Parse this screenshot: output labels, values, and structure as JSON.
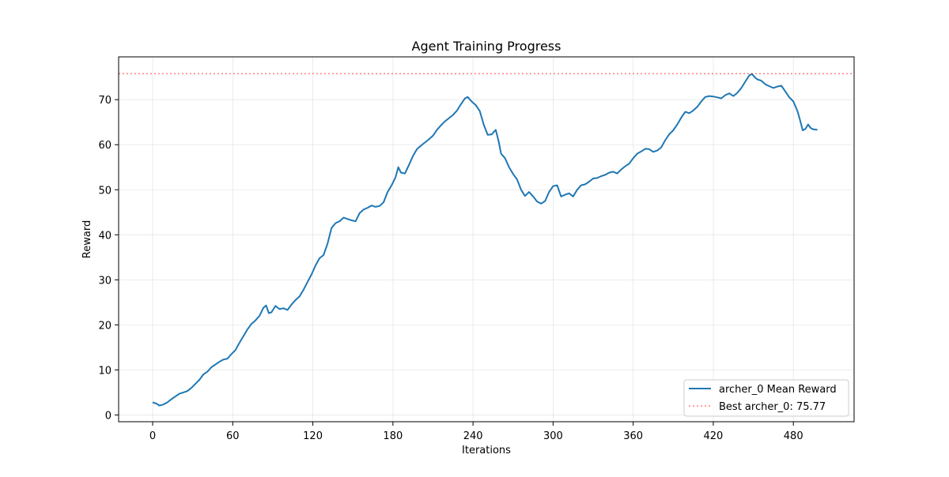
{
  "chart_data": {
    "type": "line",
    "title": "Agent Training Progress",
    "xlabel": "Iterations",
    "ylabel": "Reward",
    "xlim": [
      -25.5,
      525.5
    ],
    "ylim": [
      -1.5,
      79.5
    ],
    "xticks": [
      0,
      60,
      120,
      180,
      240,
      300,
      360,
      420,
      480
    ],
    "yticks": [
      0,
      10,
      20,
      30,
      40,
      50,
      60,
      70
    ],
    "grid": true,
    "legend_position": "lower-right",
    "series": [
      {
        "name": "archer_0 Mean Reward",
        "color": "#1f77b4",
        "style": "solid",
        "points": [
          [
            0,
            2.8
          ],
          [
            3,
            2.5
          ],
          [
            5,
            2.1
          ],
          [
            8,
            2.3
          ],
          [
            11,
            2.8
          ],
          [
            14,
            3.5
          ],
          [
            17,
            4.1
          ],
          [
            20,
            4.7
          ],
          [
            23,
            5.0
          ],
          [
            26,
            5.3
          ],
          [
            29,
            6.0
          ],
          [
            32,
            6.9
          ],
          [
            35,
            7.8
          ],
          [
            38,
            9.0
          ],
          [
            41,
            9.6
          ],
          [
            44,
            10.6
          ],
          [
            47,
            11.2
          ],
          [
            50,
            11.8
          ],
          [
            53,
            12.3
          ],
          [
            56,
            12.5
          ],
          [
            59,
            13.5
          ],
          [
            62,
            14.4
          ],
          [
            65,
            16.0
          ],
          [
            68,
            17.5
          ],
          [
            71,
            19.0
          ],
          [
            74,
            20.2
          ],
          [
            77,
            21.0
          ],
          [
            80,
            22.0
          ],
          [
            83,
            23.8
          ],
          [
            85,
            24.3
          ],
          [
            87,
            22.6
          ],
          [
            89,
            22.8
          ],
          [
            92,
            24.2
          ],
          [
            95,
            23.5
          ],
          [
            98,
            23.7
          ],
          [
            101,
            23.3
          ],
          [
            104,
            24.5
          ],
          [
            107,
            25.5
          ],
          [
            110,
            26.3
          ],
          [
            113,
            27.8
          ],
          [
            116,
            29.5
          ],
          [
            119,
            31.2
          ],
          [
            122,
            33.2
          ],
          [
            125,
            34.8
          ],
          [
            128,
            35.5
          ],
          [
            131,
            38.0
          ],
          [
            134,
            41.5
          ],
          [
            137,
            42.6
          ],
          [
            140,
            43.0
          ],
          [
            143,
            43.8
          ],
          [
            146,
            43.5
          ],
          [
            149,
            43.2
          ],
          [
            152,
            43.0
          ],
          [
            155,
            44.8
          ],
          [
            158,
            45.6
          ],
          [
            161,
            46.0
          ],
          [
            164,
            46.5
          ],
          [
            167,
            46.2
          ],
          [
            170,
            46.4
          ],
          [
            173,
            47.2
          ],
          [
            176,
            49.5
          ],
          [
            179,
            51.0
          ],
          [
            182,
            52.8
          ],
          [
            184,
            55.0
          ],
          [
            186,
            53.8
          ],
          [
            189,
            53.6
          ],
          [
            192,
            55.5
          ],
          [
            195,
            57.5
          ],
          [
            198,
            59.0
          ],
          [
            201,
            59.8
          ],
          [
            204,
            60.5
          ],
          [
            207,
            61.2
          ],
          [
            210,
            62.0
          ],
          [
            213,
            63.3
          ],
          [
            216,
            64.3
          ],
          [
            219,
            65.2
          ],
          [
            222,
            65.9
          ],
          [
            225,
            66.6
          ],
          [
            228,
            67.6
          ],
          [
            231,
            69.0
          ],
          [
            234,
            70.3
          ],
          [
            236,
            70.6
          ],
          [
            239,
            69.6
          ],
          [
            242,
            68.8
          ],
          [
            245,
            67.5
          ],
          [
            248,
            64.5
          ],
          [
            251,
            62.2
          ],
          [
            254,
            62.3
          ],
          [
            257,
            63.3
          ],
          [
            259,
            61.0
          ],
          [
            261,
            58.0
          ],
          [
            264,
            57.0
          ],
          [
            267,
            55.0
          ],
          [
            270,
            53.5
          ],
          [
            273,
            52.3
          ],
          [
            276,
            50.0
          ],
          [
            279,
            48.6
          ],
          [
            282,
            49.5
          ],
          [
            285,
            48.5
          ],
          [
            288,
            47.4
          ],
          [
            291,
            46.9
          ],
          [
            294,
            47.5
          ],
          [
            297,
            49.5
          ],
          [
            300,
            50.8
          ],
          [
            303,
            51.0
          ],
          [
            306,
            48.5
          ],
          [
            309,
            48.9
          ],
          [
            312,
            49.2
          ],
          [
            315,
            48.5
          ],
          [
            318,
            50.0
          ],
          [
            321,
            51.0
          ],
          [
            324,
            51.2
          ],
          [
            327,
            51.8
          ],
          [
            330,
            52.5
          ],
          [
            333,
            52.6
          ],
          [
            336,
            53.0
          ],
          [
            339,
            53.3
          ],
          [
            342,
            53.8
          ],
          [
            345,
            54.0
          ],
          [
            348,
            53.6
          ],
          [
            351,
            54.5
          ],
          [
            354,
            55.2
          ],
          [
            357,
            55.8
          ],
          [
            360,
            57.0
          ],
          [
            363,
            58.0
          ],
          [
            366,
            58.5
          ],
          [
            369,
            59.1
          ],
          [
            372,
            59.0
          ],
          [
            375,
            58.4
          ],
          [
            378,
            58.7
          ],
          [
            381,
            59.4
          ],
          [
            384,
            61.0
          ],
          [
            387,
            62.3
          ],
          [
            390,
            63.2
          ],
          [
            393,
            64.5
          ],
          [
            396,
            66.0
          ],
          [
            399,
            67.3
          ],
          [
            402,
            67.0
          ],
          [
            405,
            67.6
          ],
          [
            408,
            68.4
          ],
          [
            411,
            69.6
          ],
          [
            414,
            70.6
          ],
          [
            417,
            70.8
          ],
          [
            420,
            70.7
          ],
          [
            423,
            70.5
          ],
          [
            426,
            70.3
          ],
          [
            429,
            71.0
          ],
          [
            432,
            71.4
          ],
          [
            435,
            70.8
          ],
          [
            438,
            71.5
          ],
          [
            441,
            72.6
          ],
          [
            444,
            74.0
          ],
          [
            447,
            75.4
          ],
          [
            449,
            75.7
          ],
          [
            451,
            75.0
          ],
          [
            453,
            74.5
          ],
          [
            456,
            74.2
          ],
          [
            459,
            73.4
          ],
          [
            462,
            73.0
          ],
          [
            465,
            72.6
          ],
          [
            468,
            72.9
          ],
          [
            471,
            73.1
          ],
          [
            474,
            71.8
          ],
          [
            477,
            70.5
          ],
          [
            480,
            69.6
          ],
          [
            483,
            67.5
          ],
          [
            485,
            65.5
          ],
          [
            487,
            63.2
          ],
          [
            489,
            63.5
          ],
          [
            491,
            64.5
          ],
          [
            493,
            63.7
          ],
          [
            495,
            63.4
          ],
          [
            498,
            63.3
          ]
        ]
      },
      {
        "name": "Best archer_0: 75.77",
        "color": "#ff0000",
        "style": "dotted",
        "alpha": 0.5,
        "hline": 75.77
      }
    ]
  }
}
